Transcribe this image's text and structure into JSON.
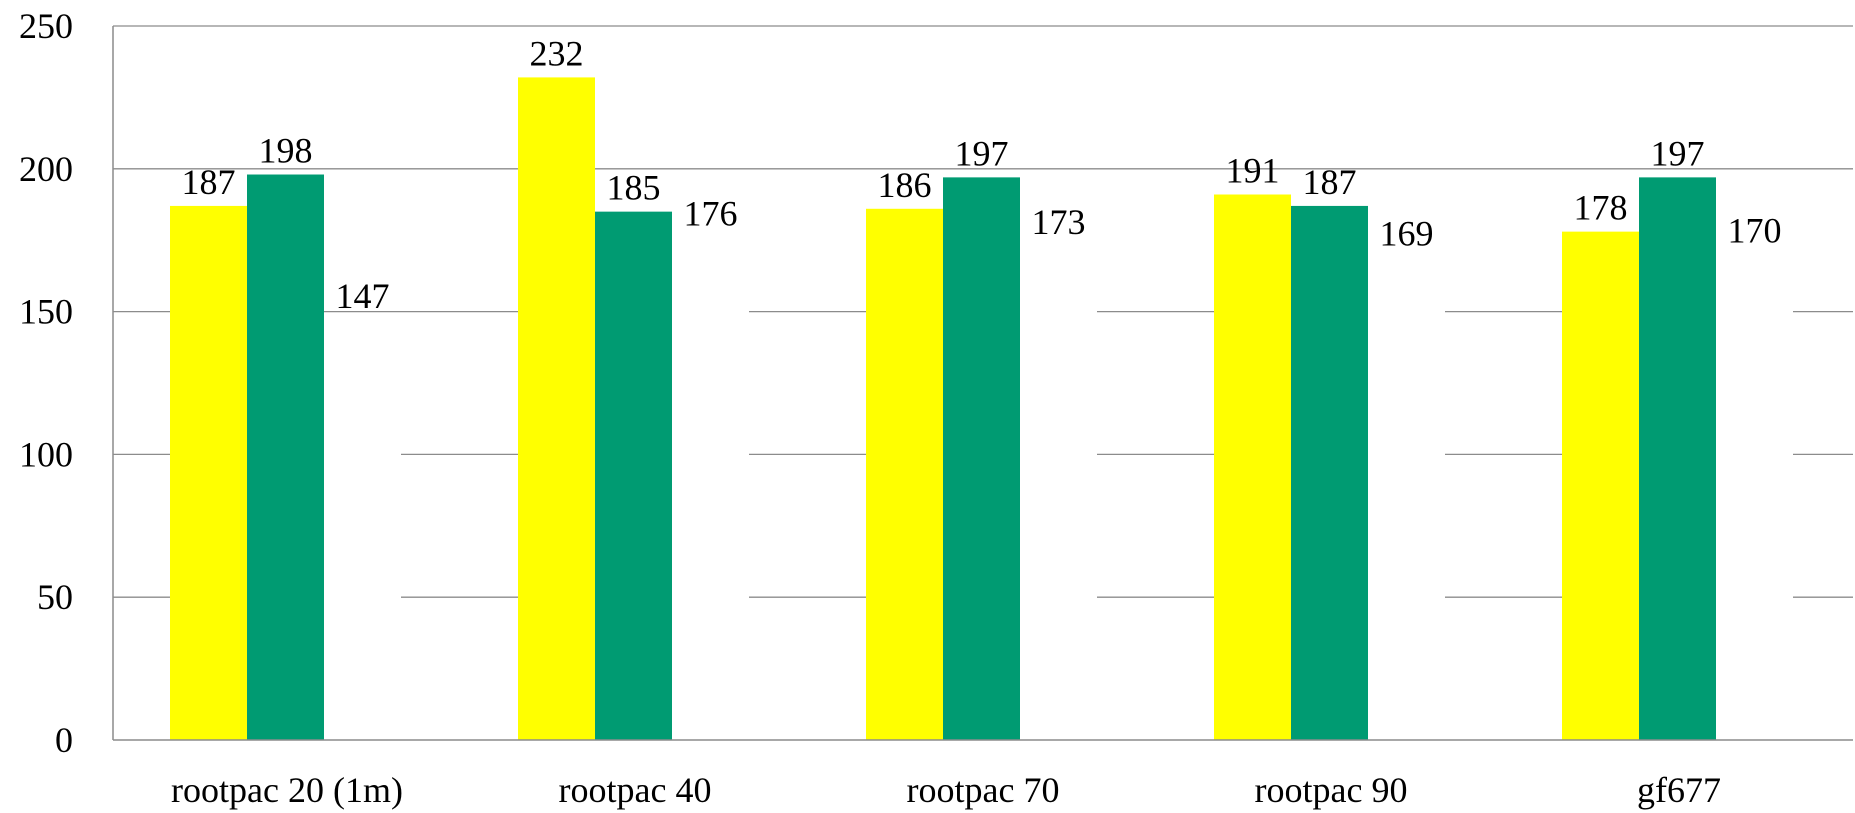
{
  "chart_data": {
    "type": "bar",
    "categories": [
      "rootpac 20 (1m)",
      "rootpac 40",
      "rootpac 70",
      "rootpac 90",
      "gf677"
    ],
    "series": [
      {
        "values": [
          187,
          232,
          186,
          191,
          178
        ],
        "color": "#FFFF00"
      },
      {
        "values": [
          198,
          185,
          197,
          187,
          197
        ],
        "color": "#009B72"
      },
      {
        "values": [
          147,
          176,
          173,
          169,
          170
        ],
        "color": "#FFFFFF"
      }
    ],
    "yticks": [
      "0",
      "50",
      "100",
      "150",
      "200",
      "250"
    ],
    "ylim": [
      0,
      250
    ],
    "title": "",
    "xlabel": "",
    "ylabel": "",
    "grid": true,
    "legend": "none"
  }
}
